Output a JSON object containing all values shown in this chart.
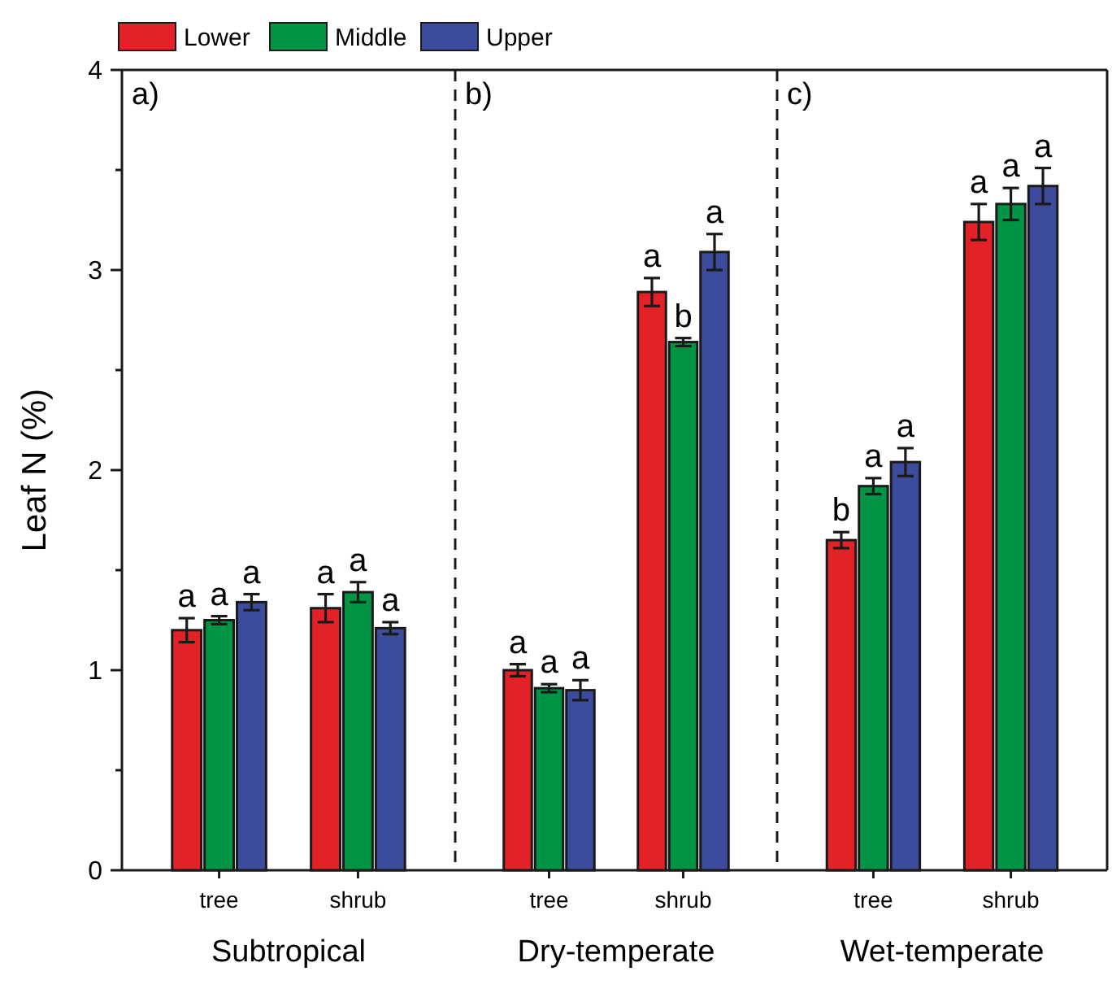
{
  "chart_data": [
    {
      "type": "bar",
      "title": "a)",
      "xlabel": "Subtropical",
      "ylabel": "Leaf N (%)",
      "categories": [
        "tree",
        "shrub"
      ],
      "ylim": [
        0,
        4
      ],
      "yticks": [
        0,
        {
          "value": 0.5,
          "label": null
        },
        1,
        {
          "value": 1.5,
          "label": null
        },
        2,
        {
          "value": 2.5,
          "label": null
        },
        3,
        {
          "value": 3.5,
          "label": null
        },
        4
      ],
      "legend": "top",
      "series": [
        {
          "name": "Lower",
          "color": "#e32227",
          "values": [
            1.2,
            1.31
          ],
          "errors": [
            0.06,
            0.07
          ]
        },
        {
          "name": "Middle",
          "color": "#009444",
          "values": [
            1.25,
            1.39
          ],
          "errors": [
            0.02,
            0.05
          ]
        },
        {
          "name": "Upper",
          "color": "#3c4b9b",
          "values": [
            1.34,
            1.21
          ],
          "errors": [
            0.04,
            0.03
          ]
        }
      ],
      "annotations": [
        "a",
        "a",
        "a",
        "a",
        "a",
        "a"
      ]
    },
    {
      "type": "bar",
      "title": "b)",
      "xlabel": "Dry-temperate",
      "categories": [
        "tree",
        "shrub"
      ],
      "ylim": [
        0,
        4
      ],
      "tick_labels": "x",
      "series": [
        {
          "color": "#e32227",
          "values": [
            1.0,
            2.89
          ],
          "errors": [
            0.03,
            0.07
          ]
        },
        {
          "color": "#009444",
          "values": [
            0.91,
            2.64
          ],
          "errors": [
            0.02,
            0.02
          ]
        },
        {
          "color": "#3c4b9b",
          "values": [
            0.9,
            3.09
          ],
          "errors": [
            0.05,
            0.09
          ]
        }
      ],
      "annotations": [
        "a",
        "a",
        "a",
        "a",
        "b",
        "a"
      ]
    },
    {
      "type": "bar",
      "title": "c)",
      "xlabel": "Wet-temperate",
      "categories": [
        "tree",
        "shrub"
      ],
      "ylim": [
        0,
        4
      ],
      "tick_labels": "x",
      "series": [
        {
          "color": "#e32227",
          "values": [
            1.65,
            3.24
          ],
          "errors": [
            0.04,
            0.09
          ]
        },
        {
          "color": "#009444",
          "values": [
            1.92,
            3.33
          ],
          "errors": [
            0.04,
            0.08
          ]
        },
        {
          "color": "#3c4b9b",
          "values": [
            2.04,
            3.42
          ],
          "errors": [
            0.07,
            0.09
          ]
        }
      ],
      "annotations": [
        "b",
        "a",
        "a",
        "a",
        "a",
        "a"
      ]
    }
  ]
}
